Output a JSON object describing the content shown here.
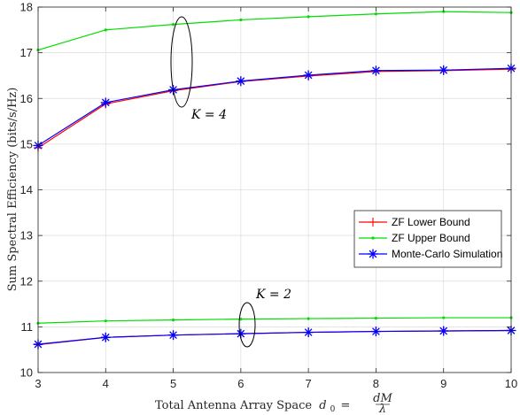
{
  "chart_data": {
    "type": "line",
    "xlabel": "Total Antenna Array Space",
    "xlabel_math": {
      "var": "d",
      "sub": "0",
      "frac_num": "dM",
      "frac_den": "λ"
    },
    "ylabel": "Sum Spectral Efficiency (bits/s/Hz)",
    "xlim": [
      3,
      10
    ],
    "ylim": [
      10,
      18
    ],
    "xticks": [
      3,
      4,
      5,
      6,
      7,
      8,
      9,
      10
    ],
    "yticks": [
      10,
      11,
      12,
      13,
      14,
      15,
      16,
      17,
      18
    ],
    "grid": true,
    "legend_position": "center-right",
    "x": [
      3,
      4,
      5,
      6,
      7,
      8,
      9,
      10
    ],
    "series": [
      {
        "name": "ZF Lower Bound",
        "group": "K=4",
        "color": "#ff0000",
        "marker": "plus",
        "values": [
          14.92,
          15.88,
          16.17,
          16.37,
          16.49,
          16.59,
          16.61,
          16.64
        ]
      },
      {
        "name": "ZF Upper Bound",
        "group": "K=4",
        "color": "#00dd00",
        "marker": "dot",
        "values": [
          17.06,
          17.5,
          17.62,
          17.72,
          17.79,
          17.85,
          17.9,
          17.88
        ]
      },
      {
        "name": "Monte-Carlo Simulation",
        "group": "K=4",
        "color": "#0000ff",
        "marker": "asterisk",
        "values": [
          14.97,
          15.91,
          16.19,
          16.38,
          16.51,
          16.61,
          16.62,
          16.66
        ]
      },
      {
        "name": "ZF Lower Bound",
        "group": "K=2",
        "color": "#ff0000",
        "marker": "plus",
        "values": [
          10.61,
          10.77,
          10.82,
          10.85,
          10.88,
          10.9,
          10.91,
          10.92
        ]
      },
      {
        "name": "ZF Upper Bound",
        "group": "K=2",
        "color": "#00dd00",
        "marker": "dot",
        "values": [
          11.08,
          11.13,
          11.15,
          11.17,
          11.18,
          11.19,
          11.2,
          11.2
        ]
      },
      {
        "name": "Monte-Carlo Simulation",
        "group": "K=2",
        "color": "#0000ff",
        "marker": "asterisk",
        "values": [
          10.62,
          10.77,
          10.82,
          10.85,
          10.88,
          10.9,
          10.91,
          10.92
        ]
      }
    ],
    "legend": [
      {
        "label": "ZF Lower Bound",
        "color": "#ff0000",
        "marker": "plus"
      },
      {
        "label": "ZF Upper Bound",
        "color": "#00dd00",
        "marker": "dot"
      },
      {
        "label": "Monte-Carlo Simulation",
        "color": "#0000ff",
        "marker": "asterisk"
      }
    ],
    "annotations": [
      {
        "text": "K = 4",
        "near_x": 5,
        "near_y": 17.0
      },
      {
        "text": "K = 2",
        "near_x": 6,
        "near_y": 11.0
      }
    ]
  }
}
